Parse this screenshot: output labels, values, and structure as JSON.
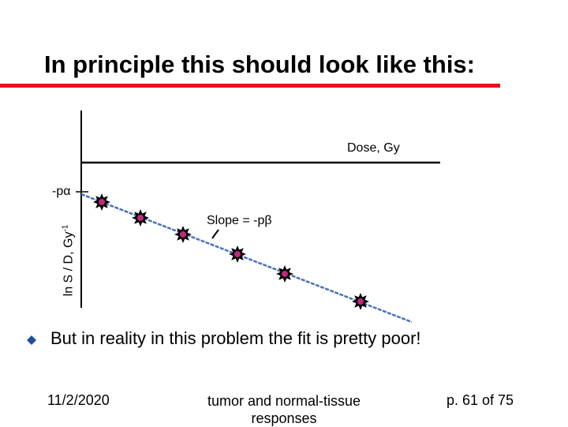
{
  "slide": {
    "title": "In principle this should look like this:",
    "accent_color": "#e5121b",
    "bullet_text": "But in reality in this problem the fit is pretty poor!",
    "bullet_icon": "diamond-bullet-icon",
    "bullet_color": "#1f4e9a"
  },
  "diagram": {
    "x_axis_label": "Dose, Gy",
    "y_axis_label": "ln S / D, Gy",
    "y_axis_label_exponent": "-1",
    "intercept_label": "-pα",
    "slope_label": "Slope = -pβ",
    "fit_line_color": "#4a73b5",
    "marker_icon": "star-burst-marker-icon"
  },
  "footer": {
    "date": "11/2/2020",
    "center_text": "tumor and normal-tissue responses",
    "page": "p. 61 of 75"
  }
}
